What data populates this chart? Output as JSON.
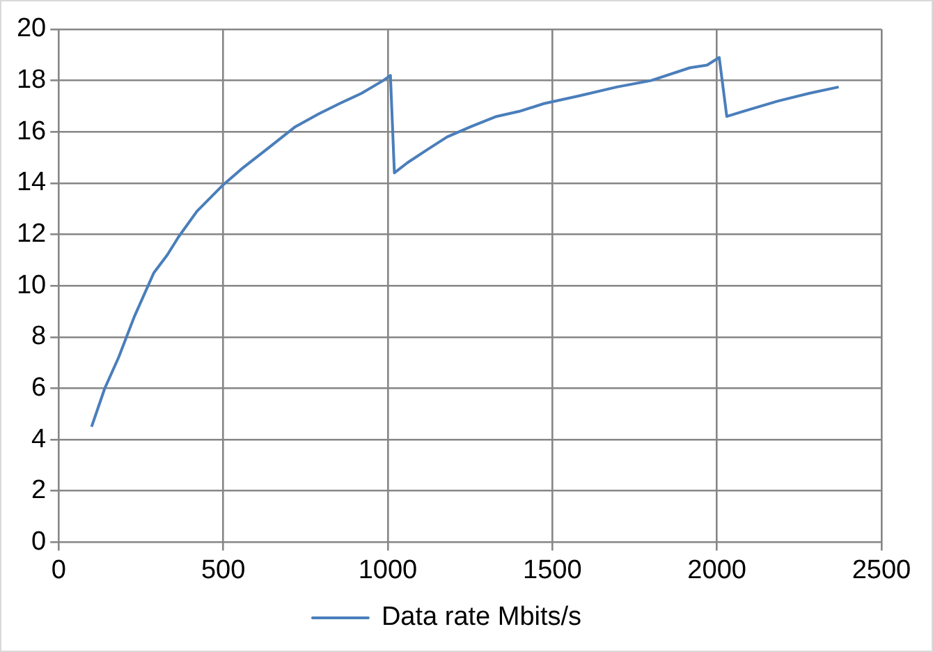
{
  "chart_data": {
    "type": "line",
    "x": [
      100,
      140,
      182,
      230,
      289,
      330,
      364,
      420,
      497,
      560,
      640,
      719,
      790,
      853,
      920,
      986,
      1008,
      1020,
      1060,
      1119,
      1180,
      1252,
      1330,
      1400,
      1474,
      1580,
      1696,
      1800,
      1918,
      1970,
      2007,
      2030,
      2080,
      2185,
      2280,
      2370
    ],
    "series": [
      {
        "name": "Data rate Mbits/s",
        "color": "#4a7ebb",
        "values": [
          4.5,
          6.0,
          7.2,
          8.8,
          10.5,
          11.2,
          11.9,
          12.9,
          13.9,
          14.6,
          15.4,
          16.2,
          16.7,
          17.1,
          17.5,
          18.0,
          18.2,
          14.4,
          14.8,
          15.3,
          15.8,
          16.2,
          16.6,
          16.8,
          17.1,
          17.4,
          17.75,
          18.0,
          18.5,
          18.6,
          18.9,
          16.6,
          16.8,
          17.2,
          17.5,
          17.75
        ]
      }
    ],
    "xlim": [
      0,
      2500
    ],
    "xticks": [
      0,
      500,
      1000,
      1500,
      2000,
      2500
    ],
    "ylim": [
      0,
      20
    ],
    "yticks": [
      0,
      2,
      4,
      6,
      8,
      10,
      12,
      14,
      16,
      18,
      20
    ],
    "grid": true,
    "legend": "bottom",
    "marker": "none",
    "line_style": "solid"
  }
}
